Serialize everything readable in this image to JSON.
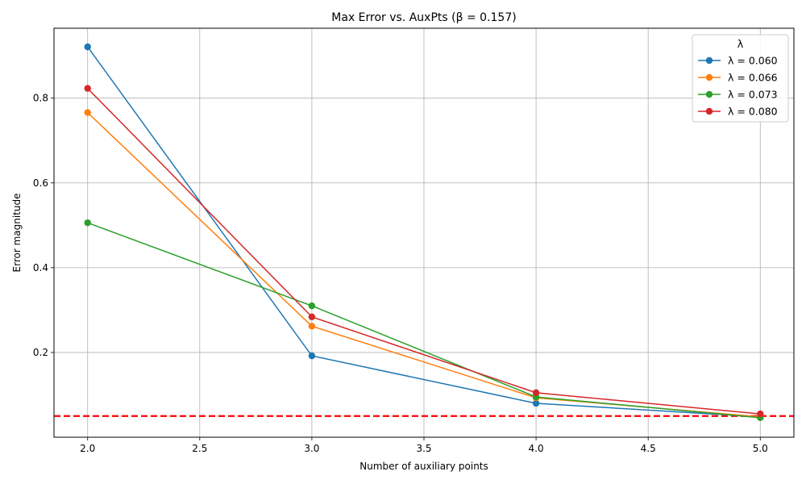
{
  "chart_data": {
    "type": "line",
    "title": "Max Error vs. AuxPts (β = 0.157)",
    "xlabel": "Number of auxiliary points",
    "ylabel": "Error magnitude",
    "x": [
      2,
      3,
      4,
      5
    ],
    "xlim": [
      1.85,
      5.15
    ],
    "ylim": [
      0.0,
      0.965
    ],
    "xticks": [
      "2.0",
      "2.5",
      "3.0",
      "3.5",
      "4.0",
      "4.5",
      "5.0"
    ],
    "yticks": [
      "0.2",
      "0.4",
      "0.6",
      "0.8"
    ],
    "grid": true,
    "legend": {
      "title": "λ",
      "placement": "top-right"
    },
    "series": [
      {
        "name": "λ = 0.060",
        "color": "#1f77b4",
        "values": [
          0.921,
          0.192,
          0.08,
          0.048
        ]
      },
      {
        "name": "λ = 0.066",
        "color": "#ff7f0e",
        "values": [
          0.766,
          0.262,
          0.093,
          0.048
        ]
      },
      {
        "name": "λ = 0.073",
        "color": "#2ca02c",
        "values": [
          0.506,
          0.31,
          0.095,
          0.046
        ]
      },
      {
        "name": "λ = 0.080",
        "color": "#d62728",
        "values": [
          0.823,
          0.284,
          0.105,
          0.055
        ]
      }
    ],
    "reference_line": {
      "y": 0.05,
      "color": "#ff0000",
      "style": "dashed"
    }
  }
}
